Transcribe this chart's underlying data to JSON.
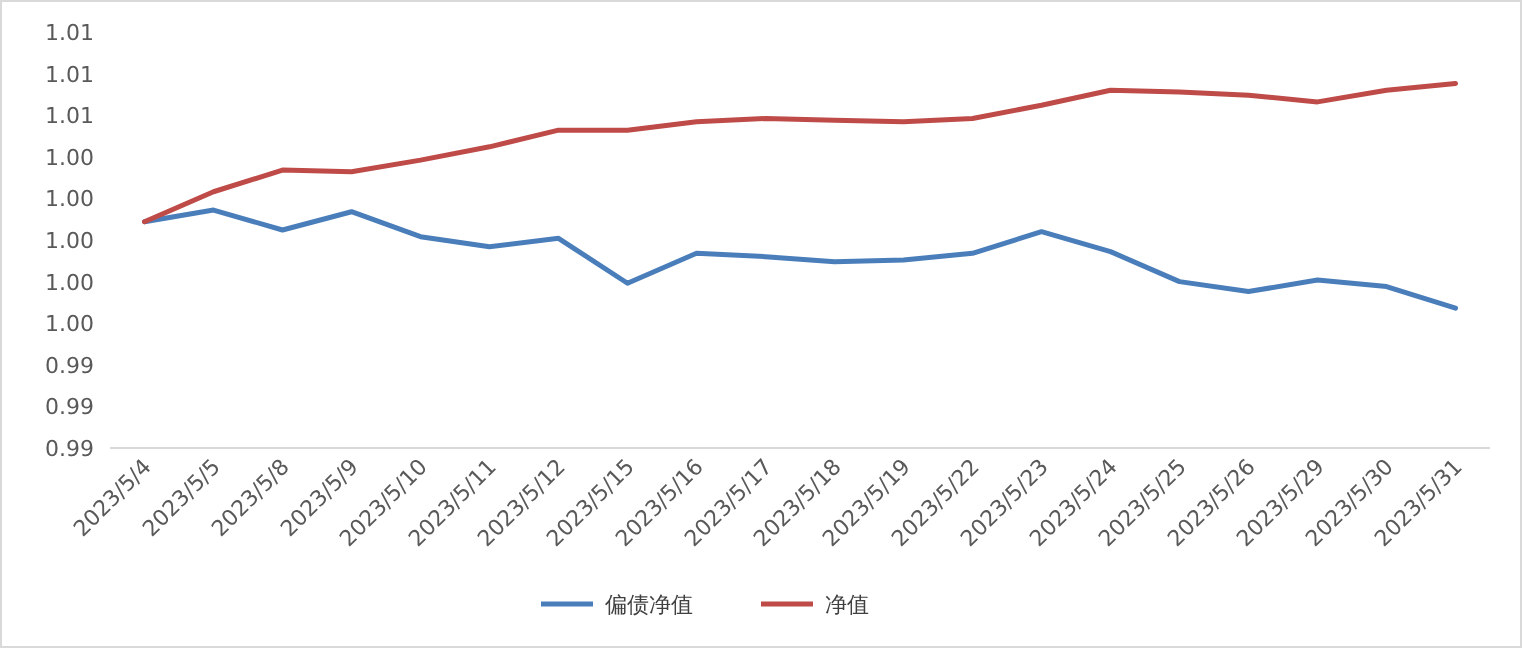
{
  "chart_data": {
    "type": "line",
    "categories": [
      "2023/5/4",
      "2023/5/5",
      "2023/5/8",
      "2023/5/9",
      "2023/5/10",
      "2023/5/11",
      "2023/5/12",
      "2023/5/15",
      "2023/5/16",
      "2023/5/17",
      "2023/5/18",
      "2023/5/19",
      "2023/5/22",
      "2023/5/23",
      "2023/5/24",
      "2023/5/25",
      "2023/5/26",
      "2023/5/29",
      "2023/5/30",
      "2023/5/31"
    ],
    "series": [
      {
        "name": "偏债净值",
        "color": "#4a7ebb",
        "values": [
          1.0011,
          1.0018,
          1.0006,
          1.0017,
          1.0002,
          0.9996,
          1.0001,
          0.9974,
          0.9992,
          0.999,
          0.9987,
          0.9988,
          0.9992,
          1.0005,
          0.9993,
          0.9975,
          0.9969,
          0.9976,
          0.9972,
          0.9959
        ]
      },
      {
        "name": "净值",
        "color": "#be4b48",
        "values": [
          1.0011,
          1.0029,
          1.0042,
          1.0041,
          1.0048,
          1.0056,
          1.0066,
          1.0066,
          1.0071,
          1.0073,
          1.0072,
          1.0071,
          1.0073,
          1.0081,
          1.009,
          1.0089,
          1.0087,
          1.0083,
          1.009,
          1.0094
        ]
      }
    ],
    "ylim": [
      0.9875,
      1.0125
    ],
    "yticks": [
      {
        "value": 0.9875,
        "label": "0.99"
      },
      {
        "value": 0.99,
        "label": "0.99"
      },
      {
        "value": 0.9925,
        "label": "0.99"
      },
      {
        "value": 0.995,
        "label": "1.00"
      },
      {
        "value": 0.9975,
        "label": "1.00"
      },
      {
        "value": 1.0,
        "label": "1.00"
      },
      {
        "value": 1.0025,
        "label": "1.00"
      },
      {
        "value": 1.005,
        "label": "1.00"
      },
      {
        "value": 1.0075,
        "label": "1.01"
      },
      {
        "value": 1.01,
        "label": "1.01"
      },
      {
        "value": 1.0125,
        "label": "1.01"
      }
    ],
    "legend": "bottom"
  }
}
